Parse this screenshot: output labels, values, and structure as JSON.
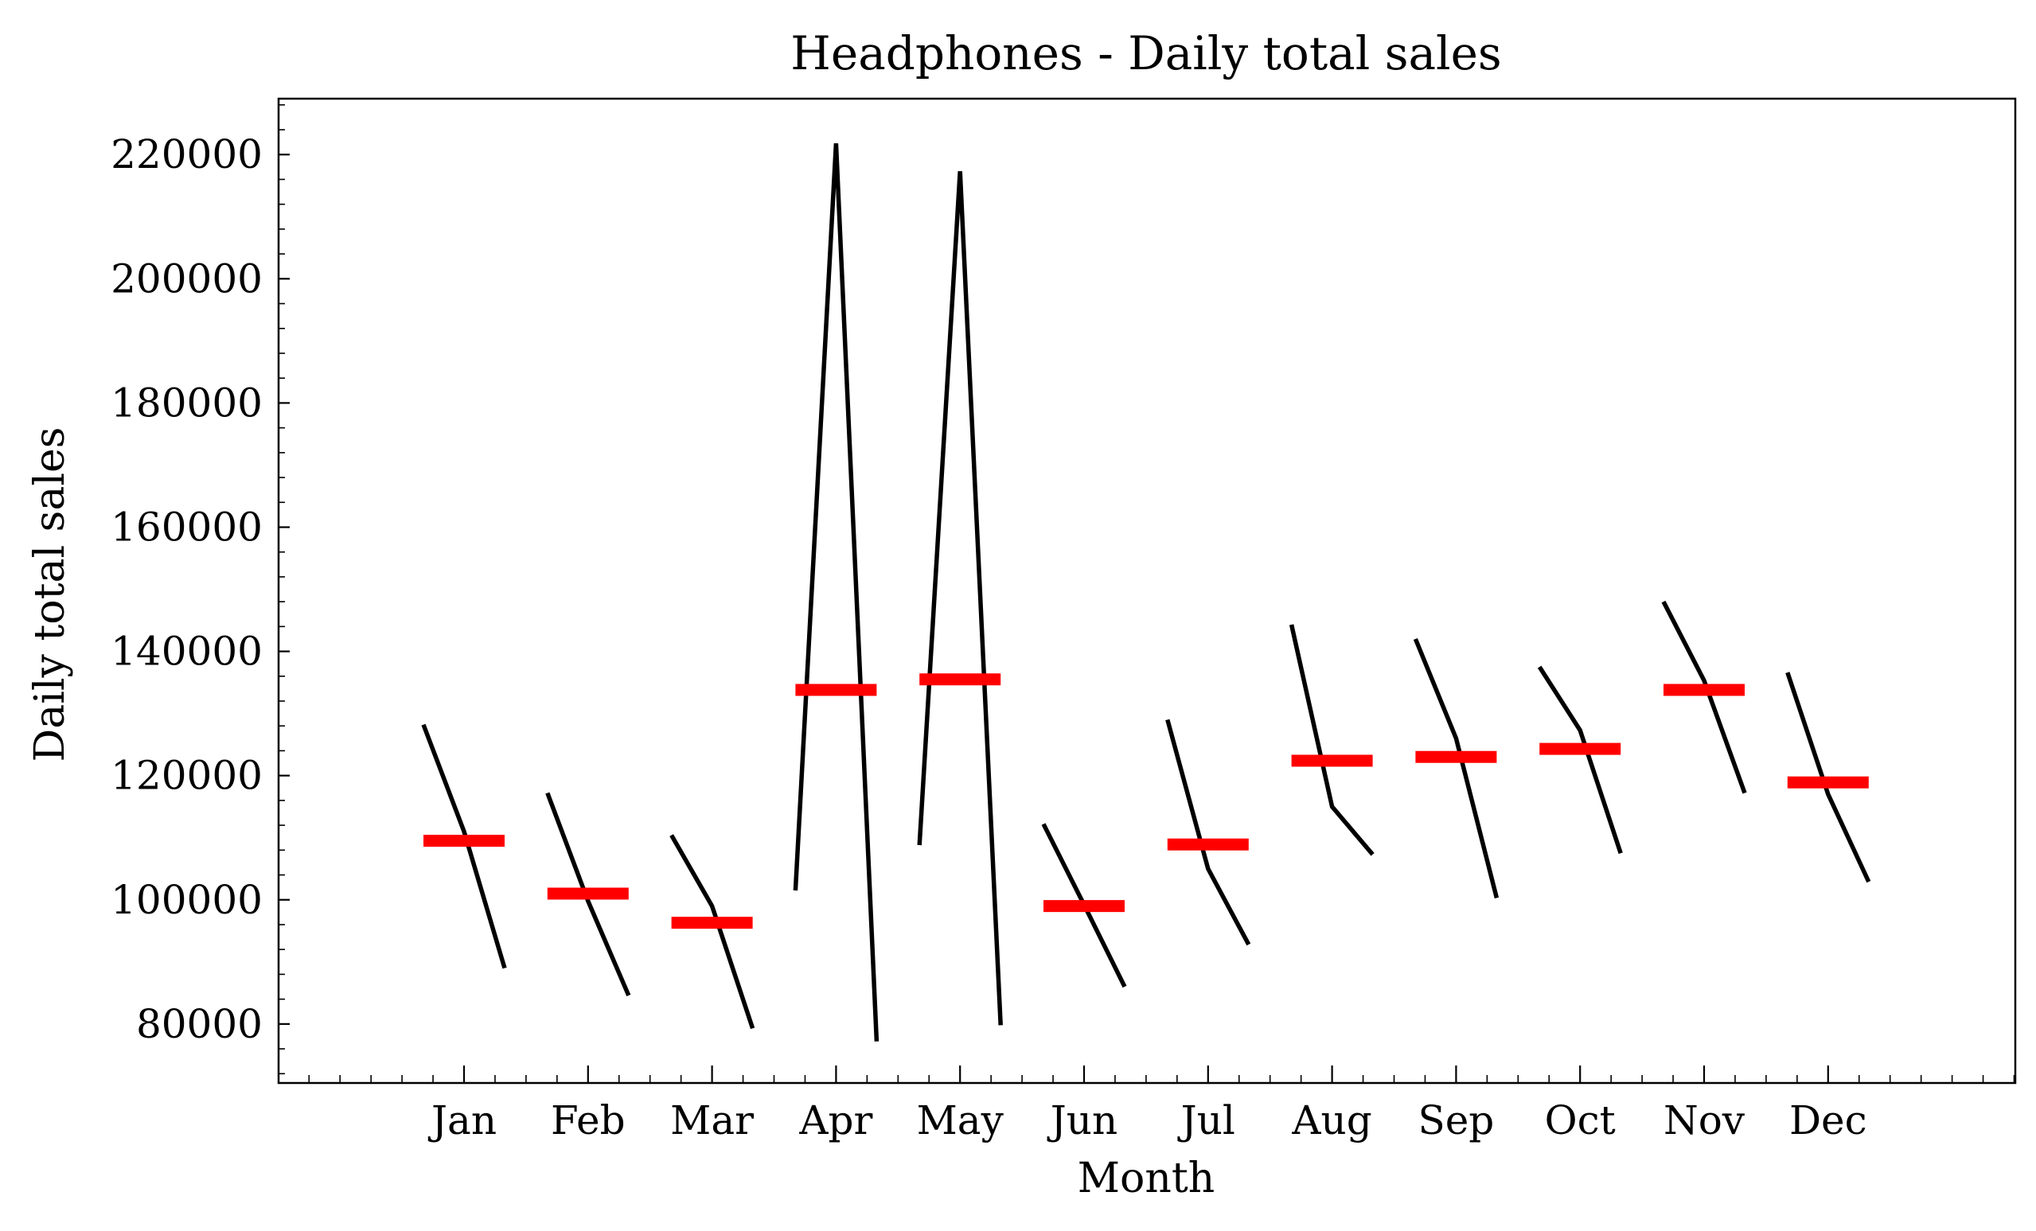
{
  "chart_data": {
    "type": "line",
    "title": "Headphones - Daily total sales",
    "xlabel": "Month",
    "ylabel": "Daily total sales",
    "categories": [
      "Jan",
      "Feb",
      "Mar",
      "Apr",
      "May",
      "Jun",
      "Jul",
      "Aug",
      "Sep",
      "Oct",
      "Nov",
      "Dec"
    ],
    "ylim": [
      70500,
      229000
    ],
    "yticks": [
      "80000",
      "100000",
      "120000",
      "140000",
      "160000",
      "180000",
      "200000",
      "220000"
    ],
    "grid": false,
    "legend": "none",
    "series": [
      {
        "values": [
          [
            128200,
            111000,
            89000
          ],
          [
            117200,
            99800,
            84600
          ],
          [
            110400,
            99000,
            79300
          ],
          [
            101500,
            221800,
            77200
          ],
          [
            108800,
            217300,
            79800
          ],
          [
            112200,
            99200,
            86000
          ],
          [
            129000,
            105000,
            92800
          ],
          [
            144300,
            115000,
            107300
          ],
          [
            142000,
            126000,
            100300
          ],
          [
            137500,
            127300,
            107500
          ],
          [
            148000,
            135300,
            117200
          ],
          [
            136600,
            117000,
            102900
          ]
        ]
      },
      {
        "values": [
          109500,
          101000,
          96300,
          133800,
          135500,
          99000,
          108900,
          122400,
          123000,
          124300,
          133800,
          118900
        ]
      }
    ],
    "colors": {
      "series_line": "#000000",
      "mean_line": "#ff0000",
      "axes": "#000000"
    }
  }
}
